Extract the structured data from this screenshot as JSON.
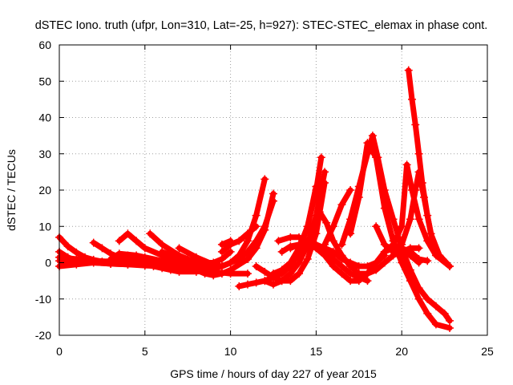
{
  "chart_data": {
    "type": "scatter",
    "title": "dSTEC Iono. truth (ufpr, Lon=310, Lat=-25, h=927): STEC-STEC_elemax in phase cont.",
    "xlabel": "GPS time / hours of day 227 of year 2015",
    "ylabel": "dSTEC  / TECUs",
    "xlim": [
      0,
      25
    ],
    "ylim": [
      -20,
      60
    ],
    "xticks": [
      0,
      5,
      10,
      15,
      20,
      25
    ],
    "yticks": [
      -20,
      -10,
      0,
      10,
      20,
      30,
      40,
      50,
      60
    ],
    "grid": true,
    "legend": "none",
    "marker": "plus",
    "series_color": "#ff0000",
    "series": [
      {
        "x": [
          0,
          0.5,
          1,
          1.5,
          2,
          2.5,
          3
        ],
        "y": [
          7,
          4.5,
          2.8,
          1.5,
          0.8,
          0.3,
          0
        ]
      },
      {
        "x": [
          0,
          0.5,
          1,
          2,
          3,
          4,
          5,
          6
        ],
        "y": [
          3,
          1.5,
          0.5,
          0,
          -0.3,
          -0.5,
          -0.5,
          -0.5
        ]
      },
      {
        "x": [
          0,
          1,
          2,
          3,
          4,
          5,
          6,
          7,
          8
        ],
        "y": [
          1.5,
          1,
          0.5,
          0.3,
          0,
          -0.5,
          -1,
          -1.5,
          -2
        ]
      },
      {
        "x": [
          0,
          1,
          2,
          3,
          4
        ],
        "y": [
          -1,
          -0.5,
          0,
          0.3,
          0.5
        ]
      },
      {
        "x": [
          0,
          1,
          2,
          3,
          4,
          5,
          6,
          7,
          8,
          9
        ],
        "y": [
          0.5,
          0.3,
          0,
          -0.3,
          -0.5,
          -0.8,
          -1,
          -1.3,
          -1.5,
          -2
        ]
      },
      {
        "x": [
          2,
          2.5,
          3,
          3.5,
          4,
          5,
          6,
          7,
          8
        ],
        "y": [
          5.5,
          4,
          2.5,
          1.5,
          1,
          0.5,
          0,
          -0.5,
          -0.5
        ]
      },
      {
        "x": [
          3.5,
          4,
          4.5,
          5,
          6,
          7,
          8,
          9
        ],
        "y": [
          6,
          8,
          6,
          4,
          2,
          0.5,
          0,
          0
        ]
      },
      {
        "x": [
          3,
          3.5,
          4.5,
          5,
          6,
          7,
          8
        ],
        "y": [
          1,
          2.5,
          2,
          1.5,
          0.5,
          0,
          -0.5
        ]
      },
      {
        "x": [
          4,
          4.5,
          5,
          5.5,
          6,
          7,
          8,
          9,
          10,
          11
        ],
        "y": [
          2,
          0.5,
          0,
          -0.5,
          -1,
          -1.5,
          -2,
          -2.5,
          -3,
          -3
        ]
      },
      {
        "x": [
          5,
          5.5,
          6,
          6.5,
          7,
          8,
          9
        ],
        "y": [
          -0.5,
          -1,
          -1.5,
          -2,
          -2.5,
          -2.5,
          -2
        ]
      },
      {
        "x": [
          5.3,
          6,
          7,
          7.5,
          8,
          8.5,
          9
        ],
        "y": [
          8,
          5,
          2,
          1,
          0,
          -1,
          -1.5
        ]
      },
      {
        "x": [
          6,
          6.5,
          7,
          7.5,
          8,
          8.5,
          9,
          9.5,
          10
        ],
        "y": [
          3,
          2,
          1,
          0.5,
          0,
          -0.5,
          0,
          1,
          3
        ]
      },
      {
        "x": [
          7,
          8,
          9,
          9.5,
          10,
          10.5,
          11,
          11.5,
          12
        ],
        "y": [
          4,
          1.5,
          -0.5,
          -1,
          0,
          2,
          6,
          13,
          23
        ]
      },
      {
        "x": [
          8,
          8.5,
          9,
          9.5,
          10,
          11,
          11.5,
          12,
          12.5
        ],
        "y": [
          -2,
          -3,
          -3.5,
          -3,
          -2,
          1,
          4,
          9,
          19
        ]
      },
      {
        "x": [
          7.5,
          8,
          8.5,
          9,
          9.5,
          10,
          10.5,
          11,
          11.5,
          12,
          12.5
        ],
        "y": [
          -0.5,
          -1,
          -1.5,
          -1.5,
          -1,
          0,
          1,
          3,
          6,
          10,
          17
        ]
      },
      {
        "x": [
          9.5,
          10,
          10.5,
          11,
          11.5
        ],
        "y": [
          3,
          5,
          6,
          8,
          10
        ]
      },
      {
        "x": [
          9.5,
          10
        ],
        "y": [
          5,
          6
        ]
      },
      {
        "x": [
          10.5,
          11,
          11.5,
          12,
          12.5,
          13,
          13.5,
          14,
          14.5,
          15
        ],
        "y": [
          -6.5,
          -6,
          -5.5,
          -5,
          -4,
          -3,
          -1,
          3,
          10,
          21
        ]
      },
      {
        "x": [
          12,
          12.5,
          13,
          13.5,
          14,
          14.5,
          15,
          15.5
        ],
        "y": [
          -5,
          -6,
          -5,
          -3,
          0,
          5,
          13,
          25
        ]
      },
      {
        "x": [
          11.5,
          12,
          12.5,
          13,
          13.5,
          14,
          14.5,
          15,
          15.5
        ],
        "y": [
          -1,
          -2.5,
          -4,
          -5,
          -5,
          -3,
          1,
          8,
          22
        ]
      },
      {
        "x": [
          12.5,
          13,
          13.5,
          14,
          14.5,
          15,
          15.3
        ],
        "y": [
          -3,
          -2,
          0,
          4,
          10,
          20,
          29
        ]
      },
      {
        "x": [
          12.8,
          13.5,
          14,
          14.5,
          15,
          15.5,
          16,
          16.5,
          17,
          17.5,
          18
        ],
        "y": [
          6,
          7,
          7,
          6,
          5,
          3,
          1,
          -1,
          -3,
          -4,
          -5
        ]
      },
      {
        "x": [
          13,
          13.5,
          14,
          14.5,
          15,
          15.5,
          16
        ],
        "y": [
          3,
          4.5,
          5,
          5,
          4,
          3,
          2
        ]
      },
      {
        "x": [
          13.5,
          14,
          14.5,
          15,
          15.5,
          16,
          16.5,
          17,
          17.5,
          18,
          18.5,
          19
        ],
        "y": [
          4,
          5,
          6,
          5,
          4,
          3,
          1,
          0,
          -1,
          -1,
          0,
          2
        ]
      },
      {
        "x": [
          14.5,
          15,
          15.5,
          16,
          16.5,
          17,
          17.5,
          18,
          18.5,
          19,
          19.5
        ],
        "y": [
          6,
          4,
          2,
          -1,
          -3,
          -5,
          -5,
          -3,
          0,
          3,
          4
        ]
      },
      {
        "x": [
          15.2,
          15.6,
          16,
          16.5,
          17,
          17.5,
          18,
          18.5,
          19,
          19.5,
          20,
          20.5,
          21
        ],
        "y": [
          14,
          11,
          6,
          2,
          -1,
          -3,
          -3,
          -2,
          0,
          2,
          3,
          2,
          0
        ]
      },
      {
        "x": [
          15.5,
          16,
          16.5,
          17
        ],
        "y": [
          5,
          10,
          16,
          20
        ]
      },
      {
        "x": [
          16.5,
          17,
          17.5,
          18,
          18.3,
          18.6,
          19,
          19.5,
          20,
          20.5,
          21,
          21.5,
          22,
          22.5,
          22.8
        ],
        "y": [
          5,
          12,
          21,
          30,
          35,
          29,
          20,
          12,
          4,
          -2,
          -7,
          -10,
          -12,
          -14,
          -16
        ]
      },
      {
        "x": [
          17,
          17.5,
          18,
          18.5,
          19,
          19.5,
          20,
          20.5,
          21,
          21.5,
          22,
          22.8
        ],
        "y": [
          8,
          18,
          33,
          29,
          15,
          6,
          0,
          -5,
          -10,
          -14,
          -17,
          -18
        ]
      },
      {
        "x": [
          18.5,
          19,
          19.5,
          20,
          20.5,
          21
        ],
        "y": [
          10,
          5,
          3,
          3,
          4,
          4
        ]
      },
      {
        "x": [
          19,
          19.5,
          20,
          20.3,
          20.6,
          21,
          21.5,
          22,
          22.8
        ],
        "y": [
          3,
          5,
          10,
          27,
          20,
          12,
          6,
          2,
          -1
        ]
      },
      {
        "x": [
          19.5,
          20,
          20.5,
          20.8,
          21,
          21.3,
          21.7,
          22.2,
          22.8
        ],
        "y": [
          2,
          5,
          12,
          20,
          25,
          18,
          8,
          2,
          -1
        ]
      },
      {
        "x": [
          20.4,
          20.6,
          20.8,
          21,
          21.2,
          21.5,
          21.8,
          22.2,
          22.6
        ],
        "y": [
          53,
          45,
          38,
          30,
          22,
          13,
          6,
          2,
          0
        ]
      },
      {
        "x": [
          19.5,
          20,
          20.5,
          21,
          21.5
        ],
        "y": [
          5,
          4,
          3,
          1,
          0.5
        ]
      }
    ]
  }
}
